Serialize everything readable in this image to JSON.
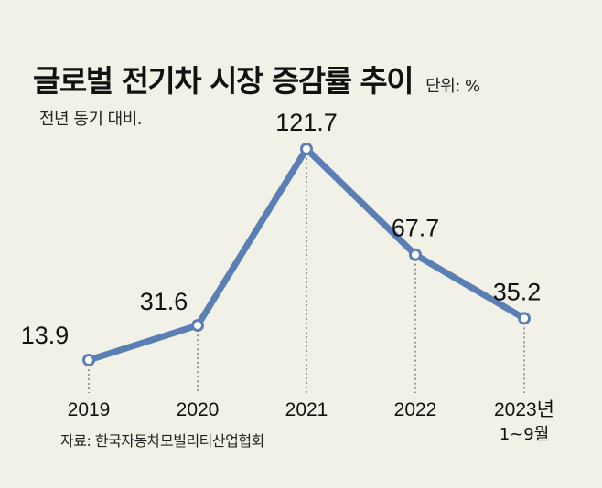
{
  "header": {
    "title": "글로벌 전기차 시장 증감률 추이",
    "unit": "단위: %",
    "subtitle": "전년 동기 대비."
  },
  "footer": {
    "source": "자료: 한국자동차모빌리티산업협회"
  },
  "colors": {
    "background": "#f1f1e7",
    "line": "#5b7fb4",
    "marker_fill": "#ffffff"
  },
  "chart_data": {
    "type": "line",
    "title": "글로벌 전기차 시장 증감률 추이",
    "subtitle": "전년 동기 대비.",
    "unit": "%",
    "categories": [
      "2019",
      "2020",
      "2021",
      "2022",
      "2023년"
    ],
    "category_sublabels": [
      "",
      "",
      "",
      "",
      "1~9월"
    ],
    "values": [
      13.9,
      31.6,
      121.7,
      67.7,
      35.2
    ],
    "data_labels": [
      "13.9",
      "31.6",
      "121.7",
      "67.7",
      "35.2"
    ],
    "ylim": [
      0,
      140
    ],
    "grid": false,
    "legend": "none"
  }
}
